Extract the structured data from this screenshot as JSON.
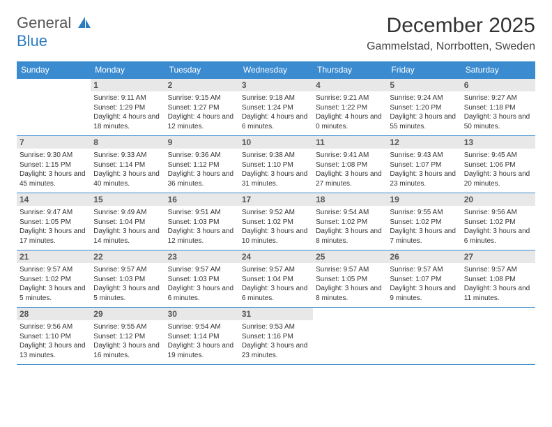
{
  "logo": {
    "line1": "General",
    "line2": "Blue"
  },
  "title": "December 2025",
  "location": "Gammelstad, Norrbotten, Sweden",
  "colors": {
    "header_bg": "#3b8bd0",
    "header_text": "#ffffff",
    "daynum_bg": "#e8e8e8",
    "daynum_text": "#555555",
    "border": "#3b8bd0",
    "page_bg": "#ffffff",
    "body_text": "#333333",
    "logo_gray": "#555555",
    "logo_blue": "#2e7cc0"
  },
  "day_headers": [
    "Sunday",
    "Monday",
    "Tuesday",
    "Wednesday",
    "Thursday",
    "Friday",
    "Saturday"
  ],
  "weeks": [
    [
      {
        "num": "",
        "sunrise": "",
        "sunset": "",
        "daylight": ""
      },
      {
        "num": "1",
        "sunrise": "Sunrise: 9:11 AM",
        "sunset": "Sunset: 1:29 PM",
        "daylight": "Daylight: 4 hours and 18 minutes."
      },
      {
        "num": "2",
        "sunrise": "Sunrise: 9:15 AM",
        "sunset": "Sunset: 1:27 PM",
        "daylight": "Daylight: 4 hours and 12 minutes."
      },
      {
        "num": "3",
        "sunrise": "Sunrise: 9:18 AM",
        "sunset": "Sunset: 1:24 PM",
        "daylight": "Daylight: 4 hours and 6 minutes."
      },
      {
        "num": "4",
        "sunrise": "Sunrise: 9:21 AM",
        "sunset": "Sunset: 1:22 PM",
        "daylight": "Daylight: 4 hours and 0 minutes."
      },
      {
        "num": "5",
        "sunrise": "Sunrise: 9:24 AM",
        "sunset": "Sunset: 1:20 PM",
        "daylight": "Daylight: 3 hours and 55 minutes."
      },
      {
        "num": "6",
        "sunrise": "Sunrise: 9:27 AM",
        "sunset": "Sunset: 1:18 PM",
        "daylight": "Daylight: 3 hours and 50 minutes."
      }
    ],
    [
      {
        "num": "7",
        "sunrise": "Sunrise: 9:30 AM",
        "sunset": "Sunset: 1:15 PM",
        "daylight": "Daylight: 3 hours and 45 minutes."
      },
      {
        "num": "8",
        "sunrise": "Sunrise: 9:33 AM",
        "sunset": "Sunset: 1:14 PM",
        "daylight": "Daylight: 3 hours and 40 minutes."
      },
      {
        "num": "9",
        "sunrise": "Sunrise: 9:36 AM",
        "sunset": "Sunset: 1:12 PM",
        "daylight": "Daylight: 3 hours and 36 minutes."
      },
      {
        "num": "10",
        "sunrise": "Sunrise: 9:38 AM",
        "sunset": "Sunset: 1:10 PM",
        "daylight": "Daylight: 3 hours and 31 minutes."
      },
      {
        "num": "11",
        "sunrise": "Sunrise: 9:41 AM",
        "sunset": "Sunset: 1:08 PM",
        "daylight": "Daylight: 3 hours and 27 minutes."
      },
      {
        "num": "12",
        "sunrise": "Sunrise: 9:43 AM",
        "sunset": "Sunset: 1:07 PM",
        "daylight": "Daylight: 3 hours and 23 minutes."
      },
      {
        "num": "13",
        "sunrise": "Sunrise: 9:45 AM",
        "sunset": "Sunset: 1:06 PM",
        "daylight": "Daylight: 3 hours and 20 minutes."
      }
    ],
    [
      {
        "num": "14",
        "sunrise": "Sunrise: 9:47 AM",
        "sunset": "Sunset: 1:05 PM",
        "daylight": "Daylight: 3 hours and 17 minutes."
      },
      {
        "num": "15",
        "sunrise": "Sunrise: 9:49 AM",
        "sunset": "Sunset: 1:04 PM",
        "daylight": "Daylight: 3 hours and 14 minutes."
      },
      {
        "num": "16",
        "sunrise": "Sunrise: 9:51 AM",
        "sunset": "Sunset: 1:03 PM",
        "daylight": "Daylight: 3 hours and 12 minutes."
      },
      {
        "num": "17",
        "sunrise": "Sunrise: 9:52 AM",
        "sunset": "Sunset: 1:02 PM",
        "daylight": "Daylight: 3 hours and 10 minutes."
      },
      {
        "num": "18",
        "sunrise": "Sunrise: 9:54 AM",
        "sunset": "Sunset: 1:02 PM",
        "daylight": "Daylight: 3 hours and 8 minutes."
      },
      {
        "num": "19",
        "sunrise": "Sunrise: 9:55 AM",
        "sunset": "Sunset: 1:02 PM",
        "daylight": "Daylight: 3 hours and 7 minutes."
      },
      {
        "num": "20",
        "sunrise": "Sunrise: 9:56 AM",
        "sunset": "Sunset: 1:02 PM",
        "daylight": "Daylight: 3 hours and 6 minutes."
      }
    ],
    [
      {
        "num": "21",
        "sunrise": "Sunrise: 9:57 AM",
        "sunset": "Sunset: 1:02 PM",
        "daylight": "Daylight: 3 hours and 5 minutes."
      },
      {
        "num": "22",
        "sunrise": "Sunrise: 9:57 AM",
        "sunset": "Sunset: 1:03 PM",
        "daylight": "Daylight: 3 hours and 5 minutes."
      },
      {
        "num": "23",
        "sunrise": "Sunrise: 9:57 AM",
        "sunset": "Sunset: 1:03 PM",
        "daylight": "Daylight: 3 hours and 6 minutes."
      },
      {
        "num": "24",
        "sunrise": "Sunrise: 9:57 AM",
        "sunset": "Sunset: 1:04 PM",
        "daylight": "Daylight: 3 hours and 6 minutes."
      },
      {
        "num": "25",
        "sunrise": "Sunrise: 9:57 AM",
        "sunset": "Sunset: 1:05 PM",
        "daylight": "Daylight: 3 hours and 8 minutes."
      },
      {
        "num": "26",
        "sunrise": "Sunrise: 9:57 AM",
        "sunset": "Sunset: 1:07 PM",
        "daylight": "Daylight: 3 hours and 9 minutes."
      },
      {
        "num": "27",
        "sunrise": "Sunrise: 9:57 AM",
        "sunset": "Sunset: 1:08 PM",
        "daylight": "Daylight: 3 hours and 11 minutes."
      }
    ],
    [
      {
        "num": "28",
        "sunrise": "Sunrise: 9:56 AM",
        "sunset": "Sunset: 1:10 PM",
        "daylight": "Daylight: 3 hours and 13 minutes."
      },
      {
        "num": "29",
        "sunrise": "Sunrise: 9:55 AM",
        "sunset": "Sunset: 1:12 PM",
        "daylight": "Daylight: 3 hours and 16 minutes."
      },
      {
        "num": "30",
        "sunrise": "Sunrise: 9:54 AM",
        "sunset": "Sunset: 1:14 PM",
        "daylight": "Daylight: 3 hours and 19 minutes."
      },
      {
        "num": "31",
        "sunrise": "Sunrise: 9:53 AM",
        "sunset": "Sunset: 1:16 PM",
        "daylight": "Daylight: 3 hours and 23 minutes."
      },
      {
        "num": "",
        "sunrise": "",
        "sunset": "",
        "daylight": ""
      },
      {
        "num": "",
        "sunrise": "",
        "sunset": "",
        "daylight": ""
      },
      {
        "num": "",
        "sunrise": "",
        "sunset": "",
        "daylight": ""
      }
    ]
  ]
}
